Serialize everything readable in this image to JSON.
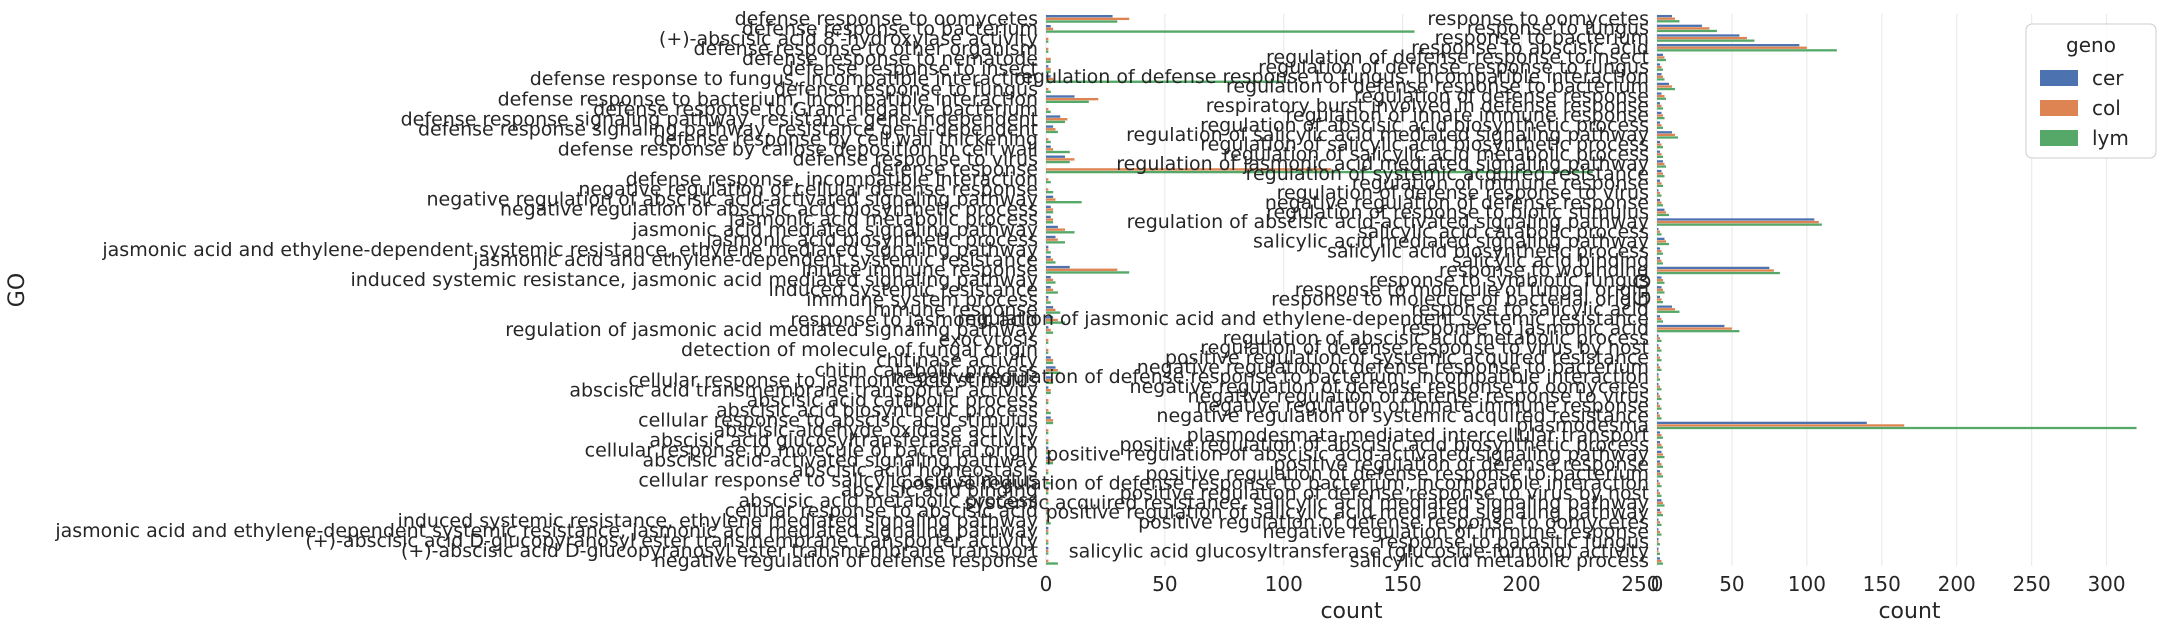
{
  "chart_data": [
    {
      "type": "bar",
      "orientation": "horizontal",
      "ylabel": "GO",
      "xlabel": "count",
      "xlim": [
        0,
        250
      ],
      "xticks": [
        0,
        50,
        100,
        150,
        200,
        250
      ],
      "grid": true,
      "legend": "none",
      "categories": [
        "defense response to oomycetes",
        "defense response to bacterium",
        "(+)-abscisic acid 8'-hydroxylase activity",
        "defense response to other organism",
        "defense response to nematode",
        "defense response to insect",
        "defense response to fungus, incompatible interaction",
        "defense response to fungus",
        "defense response to bacterium, incompatible interaction",
        "defense response to Gram-negative bacterium",
        "defense response signaling pathway, resistance gene-independent",
        "defense response signaling pathway, resistance gene-dependent",
        "defense response by cell wall thickening",
        "defense response by callose deposition in cell wall",
        "defense response to virus",
        "defense response",
        "defense response, incompatible interaction",
        "negative regulation of cellular defense response",
        "negative regulation of abscisic acid-activated signaling pathway",
        "negative regulation of abscisic acid biosynthetic process",
        "jasmonic acid metabolic process",
        "jasmonic acid mediated signaling pathway",
        "jasmonic acid biosynthetic process",
        "jasmonic acid and ethylene-dependent systemic resistance, ethylene mediated signaling pathway",
        "jasmonic acid and ethylene-dependent systemic resistance",
        "innate immune response",
        "induced systemic resistance, jasmonic acid mediated signaling pathway",
        "induced systemic resistance",
        "immune system process",
        "immune response",
        "response to jasmonic acid",
        "regulation of jasmonic acid mediated signaling pathway",
        "exocytosis",
        "detection of molecule of fungal origin",
        "chitinase activity",
        "chitin catabolic process",
        "cellular response to jasmonic acid stimulus",
        "abscisic acid transmembrane transporter activity",
        "abscisic acid catabolic process",
        "abscisic acid biosynthetic process",
        "cellular response to abscisic acid stimulus",
        "abscisic-aldehyde oxidase activity",
        "abscisic acid glucosyltransferase activity",
        "cellular response to molecule of bacterial origin",
        "abscisic acid-activated signaling pathway",
        "abscisic acid homeostasis",
        "cellular response to salicylic acid stimulus",
        "abscisic acid binding",
        "abscisic acid metabolic process",
        "cellular response to abscisic acid",
        "induced systemic resistance, ethylene mediated signaling pathway",
        "jasmonic acid and ethylene-dependent systemic resistance, jasmonic acid mediated signaling pathway",
        "(+)-abscisic acid D-glucopyranosyl ester transmembrane transporter activity",
        "(+)-abscisic acid D-glucopyranosyl ester transmembrane transport",
        "negative regulation of defense response"
      ],
      "series": [
        {
          "name": "cer",
          "color": "#4c72b0",
          "values": [
            28,
            2,
            0,
            0,
            0,
            1,
            2,
            0,
            12,
            0,
            6,
            3,
            0,
            2,
            8,
            0,
            0,
            0,
            3,
            2,
            2,
            5,
            4,
            1,
            2,
            10,
            2,
            2,
            1,
            3,
            3,
            1,
            0,
            0,
            2,
            4,
            2,
            1,
            0,
            0,
            2,
            0,
            0,
            1,
            2,
            0,
            0,
            1,
            0,
            0,
            0,
            1,
            0,
            1,
            0
          ]
        },
        {
          "name": "col",
          "color": "#dd8452",
          "values": [
            35,
            3,
            1,
            1,
            2,
            2,
            3,
            1,
            22,
            1,
            9,
            4,
            1,
            3,
            12,
            120,
            1,
            1,
            4,
            3,
            3,
            8,
            5,
            1,
            3,
            30,
            3,
            3,
            1,
            4,
            5,
            2,
            1,
            1,
            3,
            5,
            3,
            2,
            1,
            1,
            3,
            1,
            1,
            1,
            3,
            1,
            1,
            1,
            1,
            1,
            1,
            1,
            1,
            1,
            1
          ]
        },
        {
          "name": "lym",
          "color": "#55a868",
          "values": [
            30,
            155,
            1,
            1,
            2,
            2,
            100,
            2,
            18,
            2,
            8,
            5,
            2,
            10,
            10,
            230,
            2,
            3,
            15,
            3,
            3,
            12,
            8,
            2,
            4,
            35,
            4,
            5,
            2,
            6,
            8,
            3,
            1,
            1,
            3,
            6,
            3,
            2,
            1,
            2,
            3,
            1,
            1,
            2,
            3,
            1,
            2,
            1,
            1,
            1,
            2,
            1,
            1,
            1,
            5
          ]
        }
      ]
    },
    {
      "type": "bar",
      "orientation": "horizontal",
      "ylabel": "GO",
      "xlabel": "count",
      "xlim": [
        0,
        330
      ],
      "xticks": [
        0,
        50,
        100,
        150,
        200,
        250,
        300
      ],
      "grid": true,
      "legend": "top-right",
      "legend_title": "geno",
      "categories": [
        "response to oomycetes",
        "response to fungus",
        "response to bacterium",
        "response to abscisic acid",
        "regulation of defense response to insect",
        "regulation of defense response to fungus",
        "regulation of defense response to fungus, incompatible interaction",
        "regulation of defense response to bacterium",
        "regulation of defense response",
        "respiratory burst involved in defense response",
        "regulation of innate immune response",
        "regulation of abscisic acid biosynthetic process",
        "regulation of salicylic acid mediated signaling pathway",
        "regulation of salicylic acid biosynthetic process",
        "regulation of salicylic acid metabolic process",
        "regulation of jasmonic acid mediated signaling pathway",
        "regulation of systemic acquired resistance",
        "regulation of immune response",
        "regulation of defense response to virus",
        "negative regulation of defense response",
        "regulation of response to biotic stimulus",
        "regulation of abscisic acid-activated signaling pathway",
        "salicylic acid catabolic process",
        "salicylic acid mediated signaling pathway",
        "salicylic acid biosynthetic process",
        "salicylic acid binding",
        "response to wounding",
        "response to symbiotic fungus",
        "response to molecule of fungal origin",
        "response to molecule of bacterial origin",
        "response to salicylic acid",
        "regulation of jasmonic acid and ethylene-dependent systemic resistance",
        "response to jasmonic acid",
        "regulation of abscisic acid metabolic process",
        "regulation of defense response to virus by host",
        "positive regulation of systemic acquired resistance",
        "negative regulation of defense response to bacterium",
        "negative regulation of defense response to bacterium, incompatible interaction",
        "negative regulation of defense response to oomycetes",
        "negative regulation of defense response to virus",
        "negative regulation of innate immune response",
        "negative regulation of systemic acquired resistance",
        "plasmodesma",
        "plasmodesmata-mediated intercellular transport",
        "positive regulation of abscisic acid biosynthetic process",
        "positive regulation of abscisic acid-activated signaling pathway",
        "positive regulation of defense response",
        "positive regulation of defense response to bacterium",
        "positive regulation of defense response to bacterium, incompatible interaction",
        "positive regulation of defense response to virus by host",
        "systemic acquired resistance, salicylic acid mediated signaling pathway",
        "positive regulation of salicylic acid mediated signaling pathway",
        "positive regulation of defense response to oomycetes",
        "negative regulation of immune response",
        "response to parasitic fungus",
        "salicylic acid glucosyltransferase (glucoside-forming) activity",
        "salicylic acid metabolic process"
      ],
      "series": [
        {
          "name": "cer",
          "color": "#4c72b0",
          "values": [
            10,
            30,
            55,
            95,
            4,
            2,
            3,
            8,
            3,
            2,
            3,
            2,
            10,
            2,
            2,
            4,
            3,
            2,
            1,
            2,
            5,
            105,
            1,
            5,
            2,
            2,
            75,
            3,
            3,
            2,
            10,
            2,
            45,
            1,
            1,
            1,
            1,
            1,
            1,
            1,
            1,
            1,
            140,
            2,
            2,
            3,
            2,
            2,
            1,
            1,
            3,
            2,
            1,
            1,
            1,
            1,
            2
          ]
        },
        {
          "name": "col",
          "color": "#dd8452",
          "values": [
            12,
            35,
            60,
            100,
            5,
            3,
            4,
            10,
            5,
            3,
            4,
            3,
            12,
            3,
            3,
            5,
            4,
            3,
            2,
            3,
            6,
            108,
            2,
            6,
            3,
            3,
            78,
            4,
            4,
            3,
            12,
            3,
            50,
            2,
            2,
            2,
            2,
            1,
            2,
            2,
            2,
            2,
            165,
            3,
            3,
            4,
            3,
            3,
            2,
            2,
            4,
            3,
            2,
            2,
            1,
            1,
            3
          ]
        },
        {
          "name": "lym",
          "color": "#55a868",
          "values": [
            15,
            40,
            65,
            120,
            6,
            4,
            5,
            12,
            6,
            4,
            5,
            4,
            14,
            4,
            4,
            6,
            5,
            4,
            3,
            4,
            8,
            110,
            3,
            8,
            4,
            4,
            82,
            5,
            5,
            4,
            15,
            4,
            55,
            3,
            3,
            3,
            3,
            2,
            3,
            3,
            3,
            3,
            320,
            4,
            4,
            5,
            4,
            4,
            3,
            3,
            5,
            4,
            3,
            3,
            2,
            2,
            4
          ]
        }
      ]
    }
  ]
}
